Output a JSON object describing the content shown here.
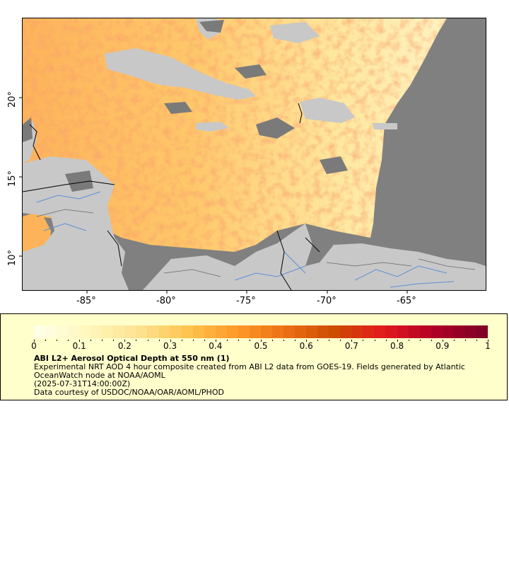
{
  "map": {
    "x_ticks": [
      "-85°",
      "-80°",
      "-75°",
      "-70°",
      "-65°"
    ],
    "y_ticks": [
      "20°",
      "15°",
      "10°"
    ],
    "colors": {
      "ocean_nodata": "#808080",
      "land": "#c8c8c8",
      "rivers": "#5b8fd6",
      "borders": "#000000"
    }
  },
  "legend": {
    "colorbar_ticks": [
      "0",
      "0.1",
      "0.2",
      "0.3",
      "0.4",
      "0.5",
      "0.6",
      "0.7",
      "0.8",
      "0.9",
      "1"
    ],
    "colormap": [
      "#ffffe5",
      "#fff7bc",
      "#fee391",
      "#fec44f",
      "#fe9929",
      "#ec7014",
      "#cc4c02",
      "#e31a1c",
      "#b10026",
      "#800026"
    ],
    "title": "ABI L2+ Aerosol Optical Depth at 550 nm (1)",
    "line1": "Experimental NRT AOD 4 hour composite created from ABI L2 data from GOES-19. Fields generated by Atlantic OceanWatch node at NOAA/AOML",
    "line2": "(2025-07-31T14:00:00Z)",
    "line3": "Data courtesy of USDOC/NOAA/OAR/AOML/PHOD"
  }
}
